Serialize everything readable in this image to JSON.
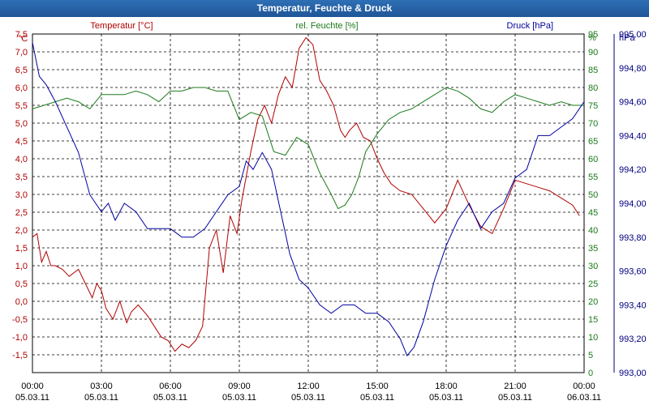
{
  "window": {
    "title": "Temperatur, Feuchte & Druck"
  },
  "chart_data": {
    "type": "line",
    "x_ticks": [
      {
        "time": "00:00",
        "date": "05.03.11"
      },
      {
        "time": "03:00",
        "date": "05.03.11"
      },
      {
        "time": "06:00",
        "date": "05.03.11"
      },
      {
        "time": "09:00",
        "date": "05.03.11"
      },
      {
        "time": "12:00",
        "date": "05.03.11"
      },
      {
        "time": "15:00",
        "date": "05.03.11"
      },
      {
        "time": "18:00",
        "date": "05.03.11"
      },
      {
        "time": "21:00",
        "date": "05.03.11"
      },
      {
        "time": "00:00",
        "date": "06.03.11"
      }
    ],
    "x_range_hours": [
      0,
      24
    ],
    "grid": true,
    "axes": {
      "temperature": {
        "unit": "°C",
        "range": [
          -2.0,
          7.5
        ],
        "ticks": [
          "-1,5",
          "-1,0",
          "-0,5",
          "0,0",
          "0,5",
          "1,0",
          "1,5",
          "2,0",
          "2,5",
          "3,0",
          "3,5",
          "4,0",
          "4,5",
          "5,0",
          "5,5",
          "6,0",
          "6,5",
          "7,0",
          "7,5"
        ]
      },
      "humidity": {
        "unit": "%",
        "range": [
          0,
          95
        ],
        "ticks": [
          "0",
          "5",
          "10",
          "15",
          "20",
          "25",
          "30",
          "35",
          "40",
          "45",
          "50",
          "55",
          "60",
          "65",
          "70",
          "75",
          "80",
          "85",
          "90",
          "95"
        ]
      },
      "pressure": {
        "unit": "hPa",
        "range": [
          993.0,
          995.0
        ],
        "ticks": [
          "993,00",
          "993,20",
          "993,40",
          "993,60",
          "993,80",
          "994,00",
          "994,20",
          "994,40",
          "994,60",
          "994,80",
          "995,00"
        ]
      }
    },
    "series": [
      {
        "name": "Temperatur [°C]",
        "axis": "temperature",
        "color": "#b00000",
        "x": [
          0,
          0.2,
          0.4,
          0.6,
          0.8,
          1.0,
          1.3,
          1.6,
          2.0,
          2.3,
          2.6,
          2.8,
          3.0,
          3.2,
          3.5,
          3.8,
          4.1,
          4.3,
          4.6,
          5.0,
          5.3,
          5.6,
          5.9,
          6.2,
          6.5,
          6.8,
          7.1,
          7.4,
          7.7,
          8.0,
          8.3,
          8.6,
          8.9,
          9.1,
          9.3,
          9.5,
          9.8,
          10.1,
          10.4,
          10.7,
          11.0,
          11.3,
          11.6,
          11.9,
          12.2,
          12.5,
          12.8,
          13.1,
          13.4,
          13.6,
          13.8,
          14.1,
          14.4,
          14.7,
          15.0,
          15.3,
          15.6,
          16.0,
          16.5,
          17.0,
          17.5,
          18.0,
          18.5,
          19.0,
          19.5,
          20.0,
          20.5,
          21.0,
          21.5,
          22.0,
          22.5,
          23.0,
          23.5,
          23.8
        ],
        "values": [
          1.8,
          1.9,
          1.1,
          1.4,
          1.0,
          1.0,
          0.9,
          0.7,
          0.9,
          0.5,
          0.1,
          0.5,
          0.3,
          -0.2,
          -0.5,
          0.0,
          -0.6,
          -0.3,
          -0.1,
          -0.4,
          -0.7,
          -1.0,
          -1.1,
          -1.4,
          -1.2,
          -1.3,
          -1.1,
          -0.7,
          1.5,
          2.0,
          0.8,
          2.4,
          1.9,
          2.8,
          3.5,
          4.2,
          5.1,
          5.5,
          5.0,
          5.8,
          6.3,
          6.0,
          7.1,
          7.4,
          7.2,
          6.2,
          5.9,
          5.5,
          4.8,
          4.6,
          4.8,
          5.0,
          4.6,
          4.5,
          4.0,
          3.6,
          3.3,
          3.1,
          3.0,
          2.6,
          2.2,
          2.6,
          3.4,
          2.7,
          2.1,
          1.9,
          2.6,
          3.4,
          3.3,
          3.2,
          3.1,
          2.9,
          2.7,
          2.4
        ]
      },
      {
        "name": "rel. Feuchte [%]",
        "axis": "humidity",
        "color": "#1a7a1a",
        "x": [
          0,
          0.5,
          1.0,
          1.5,
          2.0,
          2.5,
          3.0,
          3.5,
          4.0,
          4.5,
          5.0,
          5.5,
          6.0,
          6.5,
          7.0,
          7.5,
          8.0,
          8.5,
          9.0,
          9.5,
          10.0,
          10.5,
          11.0,
          11.5,
          12.0,
          12.5,
          13.0,
          13.3,
          13.6,
          13.9,
          14.2,
          14.5,
          15.0,
          15.5,
          16.0,
          16.5,
          17.0,
          17.5,
          18.0,
          18.5,
          19.0,
          19.5,
          20.0,
          20.5,
          21.0,
          21.5,
          22.0,
          22.5,
          23.0,
          23.5,
          24.0
        ],
        "values": [
          74,
          75,
          76,
          77,
          76,
          74,
          78,
          78,
          78,
          79,
          78,
          76,
          79,
          79,
          80,
          80,
          79,
          79,
          71,
          73,
          72,
          62,
          61,
          66,
          64,
          56,
          50,
          46,
          47,
          50,
          55,
          62,
          67,
          71,
          73,
          74,
          76,
          78,
          80,
          79,
          77,
          74,
          73,
          76,
          78,
          77,
          76,
          75,
          76,
          75,
          75
        ]
      },
      {
        "name": "Druck [hPa]",
        "axis": "pressure",
        "color": "#0000a0",
        "x": [
          0,
          0.3,
          0.6,
          1.0,
          1.5,
          2.0,
          2.5,
          3.0,
          3.3,
          3.6,
          4.0,
          4.5,
          5.0,
          5.5,
          6.0,
          6.5,
          7.0,
          7.5,
          8.0,
          8.5,
          9.0,
          9.3,
          9.6,
          10.0,
          10.4,
          10.8,
          11.2,
          11.6,
          12.0,
          12.5,
          13.0,
          13.5,
          14.0,
          14.5,
          15.0,
          15.5,
          16.0,
          16.3,
          16.6,
          17.0,
          17.5,
          18.0,
          18.5,
          19.0,
          19.5,
          20.0,
          20.5,
          21.0,
          21.5,
          22.0,
          22.5,
          23.0,
          23.5,
          24.0
        ],
        "values": [
          994.95,
          994.75,
          994.7,
          994.6,
          994.45,
          994.3,
          994.05,
          993.95,
          994.0,
          993.9,
          994.0,
          993.95,
          993.85,
          993.85,
          993.85,
          993.8,
          993.8,
          993.85,
          993.95,
          994.05,
          994.1,
          994.25,
          994.2,
          994.3,
          994.2,
          993.95,
          993.7,
          993.55,
          993.5,
          993.4,
          993.35,
          993.4,
          993.4,
          993.35,
          993.35,
          993.3,
          993.2,
          993.1,
          993.15,
          993.3,
          993.55,
          993.75,
          993.9,
          994.0,
          993.85,
          993.95,
          994.0,
          994.15,
          994.2,
          994.4,
          994.4,
          994.45,
          994.5,
          994.6
        ]
      }
    ]
  }
}
